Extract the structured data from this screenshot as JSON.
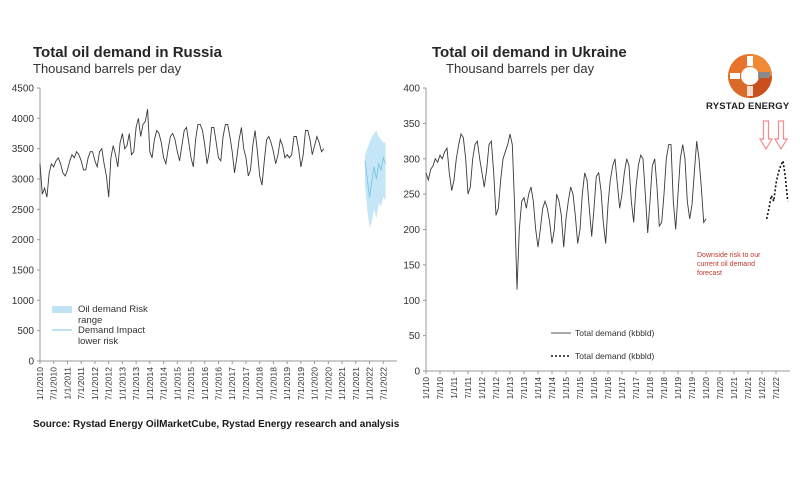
{
  "source": "Source: Rystad Energy OilMarketCube, Rystad Energy research and analysis",
  "logo": {
    "text": "RYSTAD ENERGY",
    "colors": [
      "#e8732a",
      "#f08a34",
      "#c9501d",
      "#8a8a8a"
    ]
  },
  "colors": {
    "line": "#3a3a3a",
    "band": "#bfe3f5",
    "impact": "#7cc4e8",
    "annotation": "#c0392b",
    "arrow": "#f28c8c",
    "axis": "#9a9a9a"
  },
  "chart_data": [
    {
      "type": "line",
      "title": "Total oil demand in Russia",
      "subtitle": "Thousand barrels per day",
      "ylim": [
        0,
        4500
      ],
      "yticks": [
        "0",
        "500",
        "1000",
        "1500",
        "2000",
        "2500",
        "3000",
        "3500",
        "4000",
        "4500"
      ],
      "xticks": [
        "1/1/2010",
        "7/1/2010",
        "1/1/2011",
        "7/1/2011",
        "1/1/2012",
        "7/1/2012",
        "1/1/2013",
        "7/1/2013",
        "1/1/2014",
        "7/1/2014",
        "1/1/2015",
        "7/1/2015",
        "1/1/2016",
        "7/1/2016",
        "1/1/2017",
        "7/1/2017",
        "1/1/2018",
        "7/1/2018",
        "1/1/2019",
        "7/1/2019",
        "1/1/2020",
        "7/1/2020",
        "1/1/2021",
        "7/1/2021",
        "1/1/2022",
        "7/1/2022"
      ],
      "legend": [
        {
          "label": "Oil demand Risk range",
          "line1": "Oil demand Risk",
          "line2": "range"
        },
        {
          "label": "Demand Impact lower risk",
          "line1": "Demand Impact",
          "line2": "lower risk"
        }
      ],
      "series": [
        {
          "name": "Total oil demand",
          "x_start": "2010-01",
          "values": [
            3250,
            2750,
            2850,
            2700,
            3100,
            3250,
            3200,
            3300,
            3350,
            3250,
            3100,
            3050,
            3150,
            3300,
            3400,
            3350,
            3450,
            3400,
            3300,
            3150,
            3150,
            3350,
            3450,
            3450,
            3300,
            3200,
            3450,
            3500,
            3250,
            3050,
            2700,
            3350,
            3550,
            3400,
            3200,
            3600,
            3750,
            3500,
            3550,
            3750,
            3400,
            3450,
            3850,
            4000,
            3700,
            3900,
            3950,
            4150,
            3450,
            3350,
            3650,
            3800,
            3750,
            3600,
            3350,
            3250,
            3500,
            3700,
            3750,
            3650,
            3450,
            3300,
            3550,
            3800,
            3850,
            3600,
            3350,
            3200,
            3650,
            3900,
            3900,
            3800,
            3550,
            3250,
            3450,
            3850,
            3850,
            3600,
            3350,
            3300,
            3700,
            3900,
            3900,
            3700,
            3450,
            3100,
            3350,
            3650,
            3850,
            3500,
            3350,
            3050,
            3150,
            3550,
            3800,
            3450,
            3050,
            2900,
            3300,
            3650,
            3700,
            3600,
            3450,
            3250,
            3400,
            3650,
            3550,
            3350,
            3400,
            3350,
            3400,
            3700,
            3700,
            3500,
            3200,
            3400,
            3800,
            3800,
            3650,
            3400,
            3550,
            3700,
            3600,
            3450,
            3500
          ]
        },
        {
          "name": "Oil demand Risk range",
          "x_start": "2021-11",
          "upper": [
            3400,
            3500,
            3600,
            3700,
            3750,
            3800,
            3700,
            3650,
            3600,
            3600
          ],
          "lower": [
            2900,
            2500,
            2200,
            2300,
            2500,
            2350,
            2600,
            2550,
            2700,
            2650
          ]
        },
        {
          "name": "Demand Impact lower risk",
          "x_start": "2021-11",
          "values": [
            3300,
            3000,
            2700,
            2950,
            3200,
            3000,
            3250,
            3150,
            3350,
            3250
          ]
        }
      ]
    },
    {
      "type": "line",
      "title": "Total oil demand in Ukraine",
      "subtitle": "Thousand barrels per day",
      "ylim": [
        0,
        400
      ],
      "yticks": [
        "0",
        "50",
        "100",
        "150",
        "200",
        "250",
        "300",
        "350",
        "400"
      ],
      "xticks": [
        "1/1/10",
        "7/1/10",
        "1/1/11",
        "7/1/11",
        "1/1/12",
        "7/1/12",
        "1/1/13",
        "7/1/13",
        "1/1/14",
        "7/1/14",
        "1/1/15",
        "7/1/15",
        "1/1/16",
        "7/1/16",
        "1/1/17",
        "7/1/17",
        "1/1/18",
        "7/1/18",
        "1/1/19",
        "7/1/19",
        "1/1/20",
        "7/1/20",
        "1/1/21",
        "7/1/21",
        "1/1/22",
        "7/1/22"
      ],
      "legend": [
        {
          "label": "Total demand (kbbld)",
          "style": "solid"
        },
        {
          "label": "Total demand (kbbld)",
          "style": "dotted"
        }
      ],
      "annotation": [
        "Downside risk to our",
        "current  oil demand",
        "forecast"
      ],
      "series": [
        {
          "name": "Total demand (kbbld)",
          "x_start": "2010-01",
          "values": [
            280,
            270,
            285,
            290,
            300,
            295,
            305,
            300,
            310,
            315,
            280,
            255,
            270,
            300,
            320,
            335,
            330,
            300,
            250,
            260,
            300,
            320,
            325,
            300,
            280,
            260,
            285,
            320,
            325,
            280,
            220,
            230,
            270,
            300,
            310,
            320,
            335,
            320,
            230,
            115,
            200,
            240,
            245,
            230,
            250,
            260,
            240,
            200,
            175,
            200,
            230,
            240,
            230,
            210,
            180,
            200,
            250,
            240,
            220,
            175,
            215,
            240,
            260,
            250,
            220,
            180,
            200,
            250,
            280,
            270,
            230,
            190,
            230,
            275,
            280,
            255,
            210,
            180,
            235,
            270,
            290,
            300,
            265,
            230,
            250,
            280,
            300,
            290,
            240,
            210,
            260,
            290,
            305,
            300,
            250,
            195,
            240,
            290,
            300,
            260,
            205,
            210,
            250,
            300,
            320,
            320,
            240,
            200,
            250,
            300,
            320,
            300,
            240,
            215,
            235,
            280,
            325,
            300,
            260,
            210,
            215
          ]
        },
        {
          "name": "Total demand (kbbld)",
          "x_start": "2022-03",
          "values": [
            215,
            230,
            248,
            240,
            265,
            280,
            290,
            297,
            275,
            240
          ]
        }
      ]
    }
  ]
}
